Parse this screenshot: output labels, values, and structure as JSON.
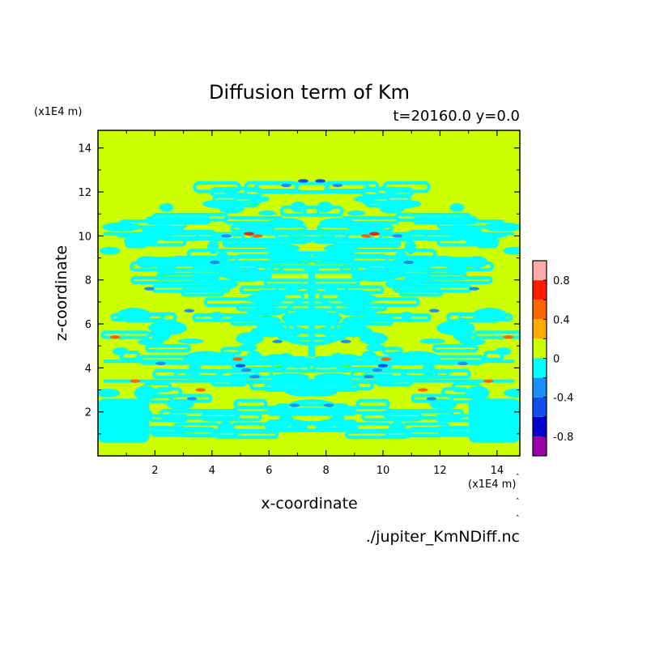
{
  "chart_data": {
    "type": "heatmap",
    "title": "Diffusion term of Km",
    "subtitle": "t=20160.0 y=0.0",
    "xlabel": "x-coordinate",
    "ylabel": "z-coordinate",
    "x_unit": "(x1E4 m)",
    "y_unit": "(x1E4 m)",
    "source": "./jupiter_KmNDiff.nc",
    "xlim": [
      0,
      14.8
    ],
    "ylim": [
      0,
      14.8
    ],
    "x_ticks": [
      2,
      4,
      6,
      8,
      10,
      12,
      14
    ],
    "y_ticks": [
      2,
      4,
      6,
      8,
      10,
      12,
      14
    ],
    "colorbar": {
      "levels": [
        -1.0,
        -0.8,
        -0.6,
        -0.4,
        -0.2,
        0.0,
        0.2,
        0.4,
        0.6,
        0.8,
        1.0
      ],
      "colors": [
        "#9900aa",
        "#0000cc",
        "#1050ee",
        "#1a90ff",
        "#00ffff",
        "#ccff00",
        "#ffaa00",
        "#ff6600",
        "#ff1a00",
        "#ffaaaa"
      ],
      "tick_labels": [
        "-0.8",
        "-0.4",
        "0",
        "0.4",
        "0.8"
      ],
      "tick_values": [
        -0.8,
        -0.4,
        0,
        0.4,
        0.8
      ]
    },
    "field_description": "Mostly values in 0 to 0.2 (yellow-green) with banded, left-right symmetric patterns of -0.2 to 0 (cyan) between z≈0 and z≈12.5, plus sparse small spots near ±0.4 around z≈3.5–4.5 and z≈10."
  }
}
